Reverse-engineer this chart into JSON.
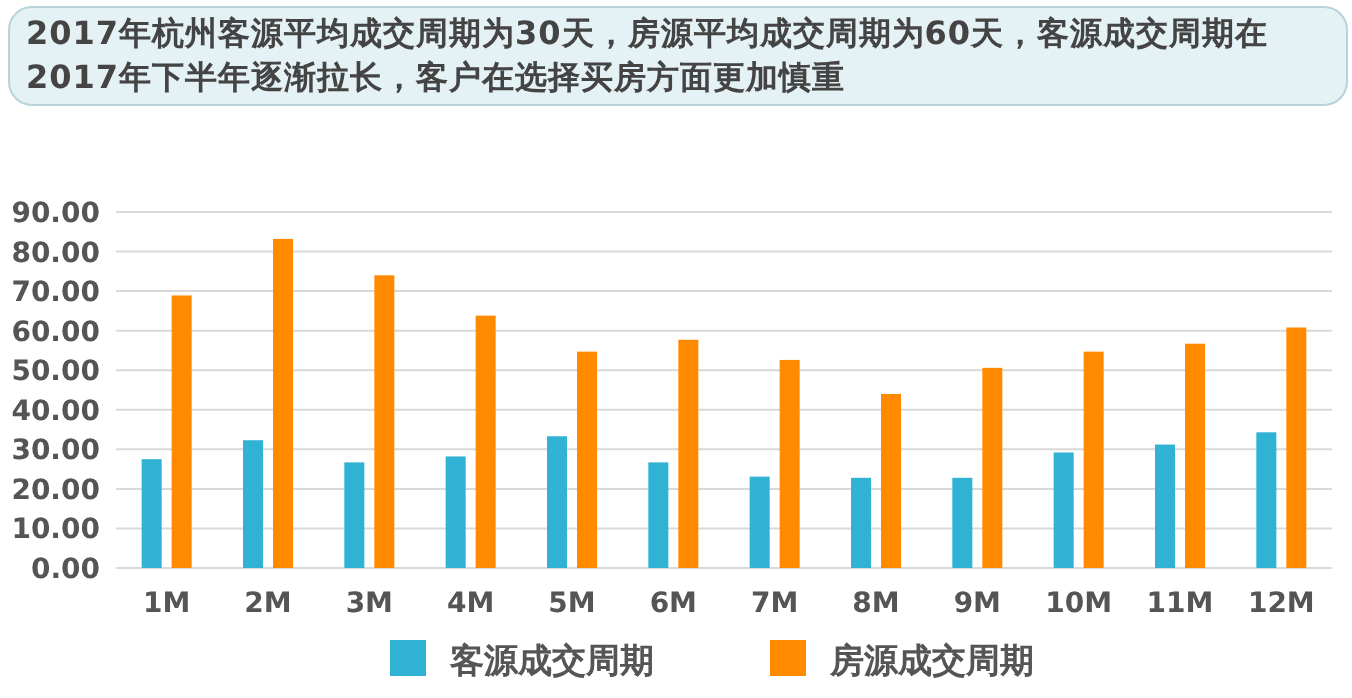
{
  "chart_data": {
    "type": "bar",
    "title": "2017年杭州客源平均成交周期为30天，房源平均成交周期为60天，客源成交周期在2017年下半年逐渐拉长，客户在选择买房方面更加慎重",
    "categories": [
      "1M",
      "2M",
      "3M",
      "4M",
      "5M",
      "6M",
      "7M",
      "8M",
      "9M",
      "10M",
      "11M",
      "12M"
    ],
    "series": [
      {
        "name": "客源成交周期",
        "color": "#2fb2d4",
        "values": [
          27.5,
          32.3,
          26.7,
          28.2,
          33.3,
          26.7,
          23.1,
          22.8,
          22.8,
          29.2,
          31.2,
          34.3
        ]
      },
      {
        "name": "房源成交周期",
        "color": "#ff8a00",
        "values": [
          68.9,
          83.2,
          74.0,
          63.8,
          54.7,
          57.7,
          52.6,
          44.0,
          50.6,
          54.7,
          56.7,
          60.8
        ]
      }
    ],
    "ylim": [
      0,
      90
    ],
    "yticks": [
      {
        "value": 0,
        "label": "0.00"
      },
      {
        "value": 10,
        "label": "10.00"
      },
      {
        "value": 20,
        "label": "20.00"
      },
      {
        "value": 30,
        "label": "30.00"
      },
      {
        "value": 40,
        "label": "40.00"
      },
      {
        "value": 50,
        "label": "50.00"
      },
      {
        "value": 60,
        "label": "60.00"
      },
      {
        "value": 70,
        "label": "70.00"
      },
      {
        "value": 80,
        "label": "80.00"
      },
      {
        "value": 90,
        "label": "90.00"
      }
    ],
    "grid": "y",
    "legend": "bottom"
  }
}
